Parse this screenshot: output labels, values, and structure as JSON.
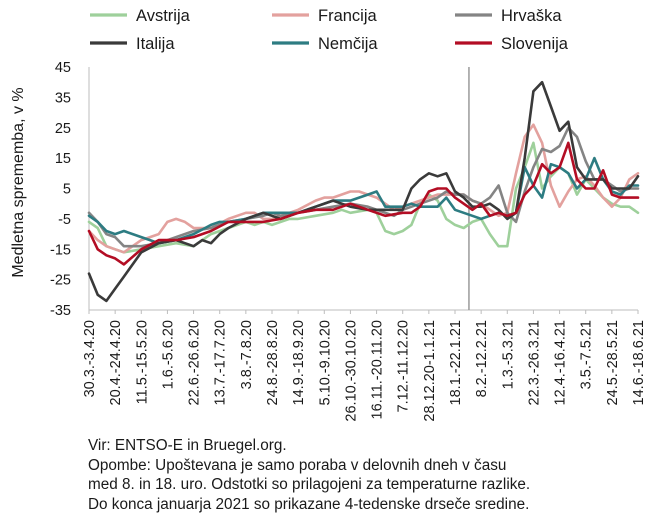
{
  "chart_data": {
    "type": "line",
    "title": "",
    "ylabel": "Medletna sprememba, v %",
    "ylim": [
      -35,
      45
    ],
    "yticks": [
      45,
      35,
      25,
      15,
      5,
      -5,
      -15,
      -25,
      -35
    ],
    "grid": false,
    "legend_position": "top",
    "x_tick_labels": [
      "30.3.-3.4.20",
      "20.4.-24.4.20",
      "11.5.-15.5.20",
      "1.6.-5.6.20",
      "22.6.-26.6.20",
      "13.7.-17.7.20",
      "3.8.-7.8.20",
      "24.8.-28.8.20",
      "14.9.-18.9.20",
      "5.10.-9.10.20",
      "26.10.-30.10.20",
      "16.11.-20.11.20",
      "7.12.-11.12.20",
      "28.12.20-1.1.21",
      "18.1.-22.1.21",
      "8.2.-12.2.21",
      "1.3.-5.3.21",
      "22.3.-26.3.21",
      "12.4.-16.4.21",
      "3.5.-7.5.21",
      "24.5.-28.5.21",
      "14.6.-18.6.21"
    ],
    "x_positions": [
      0,
      3,
      6,
      9,
      12,
      15,
      18,
      21,
      24,
      27,
      30,
      33,
      36,
      39,
      42,
      45,
      48,
      51,
      54,
      57,
      60,
      63
    ],
    "x_range": [
      0,
      63
    ],
    "marker_line_x": 43.6,
    "series": [
      {
        "name": "Avstrija",
        "color": "#9ed09b",
        "width": 2.6,
        "x": [
          0,
          1,
          2,
          3,
          4,
          6,
          8,
          10,
          12,
          14,
          16,
          18,
          19,
          20,
          21,
          22,
          23,
          24,
          26,
          28,
          29,
          30,
          32,
          33,
          34,
          35,
          36,
          37,
          38,
          39,
          40,
          41,
          42,
          43,
          44,
          45,
          46,
          47,
          48,
          49,
          50,
          51,
          52,
          53,
          54,
          55,
          56,
          57,
          58,
          59,
          60,
          61,
          62,
          63
        ],
        "y": [
          -6,
          -8,
          -14,
          -15,
          -16,
          -15,
          -14,
          -13,
          -14,
          -10,
          -8,
          -6,
          -7,
          -6,
          -7,
          -6,
          -5,
          -5,
          -4,
          -3,
          -2,
          -3,
          -2,
          -3,
          -9,
          -10,
          -9,
          -7,
          0,
          3,
          1,
          -5,
          -7,
          -8,
          -6,
          -5,
          -10,
          -14,
          -14,
          5,
          12,
          20,
          5,
          9,
          12,
          10,
          3,
          8,
          5,
          2,
          0,
          -1,
          -1,
          -3
        ]
      },
      {
        "name": "Francija",
        "color": "#e3a19e",
        "width": 2.6,
        "x": [
          0,
          1,
          2,
          3,
          4,
          6,
          8,
          9,
          10,
          11,
          12,
          14,
          16,
          18,
          19,
          20,
          21,
          22,
          24,
          26,
          27,
          28,
          30,
          31,
          32,
          33,
          34,
          35,
          36,
          38,
          40,
          41,
          42,
          43,
          44,
          45,
          46,
          47,
          48,
          49,
          50,
          51,
          52,
          53,
          54,
          55,
          56,
          57,
          58,
          59,
          60,
          61,
          62,
          63
        ],
        "y": [
          -9,
          -12,
          -14,
          -15,
          -16,
          -12,
          -10,
          -6,
          -5,
          -6,
          -8,
          -8,
          -5,
          -3,
          -3,
          -5,
          -5,
          -4,
          -2,
          1,
          2,
          2,
          4,
          4,
          3,
          2,
          0,
          -2,
          -1,
          1,
          3,
          3,
          3,
          3,
          1,
          0,
          -2,
          -4,
          -3,
          10,
          22,
          26,
          20,
          6,
          -1,
          4,
          8,
          9,
          6,
          2,
          -1,
          2,
          8,
          10
        ]
      },
      {
        "name": "Hrvaška",
        "color": "#848484",
        "width": 2.6,
        "x": [
          0,
          1,
          2,
          3,
          4,
          6,
          8,
          10,
          12,
          14,
          15,
          16,
          18,
          20,
          21,
          22,
          24,
          26,
          28,
          30,
          32,
          34,
          35,
          36,
          38,
          40,
          41,
          42,
          43,
          44,
          45,
          46,
          47,
          48,
          49,
          50,
          51,
          52,
          53,
          54,
          55,
          56,
          57,
          58,
          59,
          60,
          61,
          62,
          63
        ],
        "y": [
          -3,
          -6,
          -10,
          -11,
          -14,
          -14,
          -13,
          -11,
          -9,
          -8,
          -7,
          -6,
          -5,
          -4,
          -3,
          -4,
          -3,
          -2,
          -1,
          0,
          -1,
          -3,
          -4,
          -2,
          0,
          2,
          4,
          3,
          3,
          1,
          0,
          2,
          6,
          -3,
          -6,
          4,
          12,
          18,
          17,
          19,
          25,
          22,
          14,
          8,
          8,
          6,
          4,
          5,
          5
        ]
      },
      {
        "name": "Italija",
        "color": "#3a3a3a",
        "width": 2.6,
        "x": [
          0,
          1,
          2,
          3,
          4,
          6,
          8,
          10,
          12,
          13,
          14,
          15,
          16,
          18,
          19,
          20,
          21,
          22,
          24,
          26,
          28,
          30,
          32,
          34,
          36,
          37,
          38,
          39,
          40,
          41,
          42,
          43,
          44,
          45,
          46,
          47,
          48,
          49,
          50,
          51,
          52,
          53,
          54,
          55,
          56,
          57,
          58,
          59,
          60,
          61,
          62,
          63
        ],
        "y": [
          -23,
          -30,
          -32,
          -28,
          -24,
          -16,
          -13,
          -12,
          -14,
          -12,
          -13,
          -10,
          -8,
          -5,
          -4,
          -3,
          -4,
          -5,
          -3,
          -1,
          1,
          -1,
          -2,
          -2,
          -2,
          5,
          8,
          10,
          9,
          10,
          4,
          2,
          -1,
          -1,
          0,
          -2,
          -5,
          -3,
          15,
          37,
          40,
          32,
          24,
          27,
          12,
          8,
          8,
          8,
          5,
          5,
          5,
          9
        ]
      },
      {
        "name": "Nemčija",
        "color": "#2d7c82",
        "width": 2.6,
        "x": [
          0,
          1,
          2,
          3,
          4,
          6,
          7,
          8,
          10,
          12,
          14,
          15,
          16,
          18,
          20,
          22,
          24,
          26,
          28,
          30,
          31,
          32,
          33,
          34,
          35,
          36,
          37,
          38,
          39,
          40,
          41,
          42,
          43,
          44,
          45,
          46,
          47,
          48,
          49,
          50,
          51,
          52,
          53,
          54,
          55,
          56,
          57,
          58,
          59,
          60,
          61,
          62,
          63
        ],
        "y": [
          -4,
          -6,
          -9,
          -10,
          -9,
          -11,
          -12,
          -13,
          -12,
          -10,
          -7,
          -6,
          -6,
          -5,
          -3,
          -3,
          -3,
          -1,
          1,
          1,
          2,
          3,
          4,
          -1,
          -1,
          -1,
          0,
          -1,
          -1,
          -1,
          2,
          -2,
          -3,
          -4,
          -5,
          -4,
          -3,
          -4,
          -3,
          12,
          6,
          2,
          13,
          12,
          10,
          5,
          8,
          15,
          8,
          4,
          3,
          6,
          6
        ]
      },
      {
        "name": "Slovenija",
        "color": "#b30d24",
        "width": 2.6,
        "x": [
          0,
          1,
          2,
          3,
          4,
          6,
          8,
          10,
          12,
          14,
          16,
          18,
          20,
          22,
          24,
          26,
          28,
          30,
          32,
          34,
          36,
          37,
          38,
          39,
          40,
          41,
          42,
          43,
          44,
          45,
          46,
          47,
          48,
          49,
          50,
          51,
          52,
          53,
          54,
          55,
          56,
          57,
          58,
          59,
          60,
          61,
          62,
          63
        ],
        "y": [
          -9,
          -15,
          -17,
          -18,
          -20,
          -15,
          -12,
          -12,
          -11,
          -9,
          -6,
          -6,
          -6,
          -5,
          -3,
          -2,
          -2,
          0,
          -2,
          -4,
          -3,
          -3,
          -1,
          4,
          5,
          5,
          2,
          0,
          -2,
          0,
          -4,
          -3,
          -4,
          -3,
          3,
          6,
          13,
          10,
          12,
          20,
          8,
          5,
          5,
          11,
          3,
          2,
          2,
          2
        ]
      }
    ]
  },
  "notes": {
    "source": "Vir: ENTSO-E in Bruegel.org.",
    "line1": "Opombe: Upoštevana je samo poraba v delovnih dneh v času",
    "line2": "med 8. in 18. uro. Odstotki so prilagojeni za temperaturne razlike.",
    "line3": "Do konca januarja 2021 so prikazane 4-tedenske drseče sredine."
  }
}
